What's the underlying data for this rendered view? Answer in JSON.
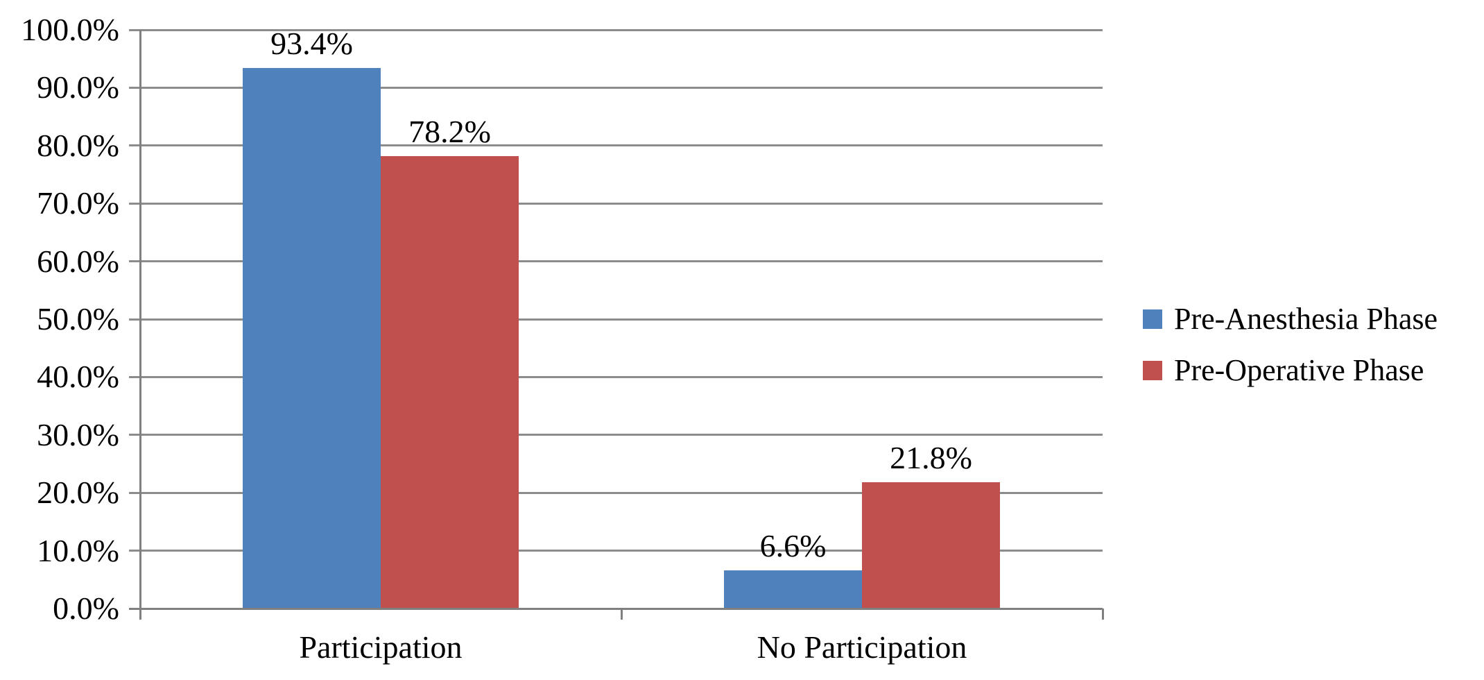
{
  "chart_data": {
    "type": "bar",
    "title": "",
    "categories": [
      "Participation",
      "No Participation"
    ],
    "series": [
      {
        "name": "Pre-Anesthesia Phase",
        "color": "#4F81BD",
        "values": [
          93.4,
          6.6
        ]
      },
      {
        "name": "Pre-Operative Phase",
        "color": "#C0504D",
        "values": [
          78.2,
          21.8
        ]
      }
    ],
    "data_labels": [
      [
        "93.4%",
        "6.6%"
      ],
      [
        "78.2%",
        "21.8%"
      ]
    ],
    "y_axis": {
      "min": 0,
      "max": 100,
      "step": 10,
      "tick_labels": [
        "0.0%",
        "10.0%",
        "20.0%",
        "30.0%",
        "40.0%",
        "50.0%",
        "60.0%",
        "70.0%",
        "80.0%",
        "90.0%",
        "100.0%"
      ]
    },
    "xlabel": "",
    "ylabel": "",
    "grid": true,
    "legend_position": "right",
    "colors": {
      "gridline": "#8C8C8C",
      "axis": "#808080",
      "text": "#000000",
      "background": "#FFFFFF"
    }
  }
}
